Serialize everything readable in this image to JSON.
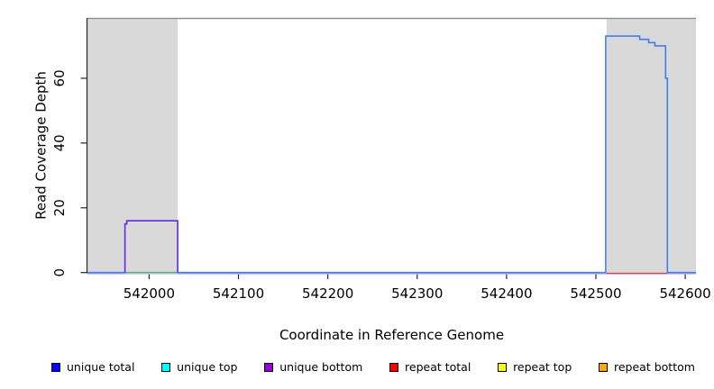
{
  "chart_data": {
    "type": "line",
    "title": "",
    "xlabel": "Coordinate in Reference Genome",
    "ylabel": "Read Coverage Depth",
    "xlim": [
      541931,
      542612
    ],
    "ylim": [
      0,
      78.6
    ],
    "xticks": [
      542000,
      542100,
      542200,
      542300,
      542400,
      542500,
      542600
    ],
    "yticks": [
      0,
      20,
      40,
      60
    ],
    "grid": "off",
    "background": "#ffffff",
    "axis_color": "#262626",
    "top_border_color": "#8f8f8f",
    "shaded_regions": [
      {
        "name": "repeat-region-left",
        "x0": 541931,
        "x1": 542032,
        "color": "#d9d9d9"
      },
      {
        "name": "repeat-region-right",
        "x0": 542512,
        "x1": 542612,
        "color": "#d9d9d9"
      }
    ],
    "series": [
      {
        "name": "zero-baseline-lavender",
        "color": "#c9aaf9",
        "width": 1.2,
        "dy": 1.4,
        "points": [
          [
            541931,
            0
          ],
          [
            542612,
            0
          ]
        ]
      },
      {
        "name": "zero-baseline-pale-yellow",
        "color": "#f1eec6",
        "width": 1.2,
        "dy": 1.0,
        "points": [
          [
            541973,
            0
          ],
          [
            542032,
            0
          ]
        ]
      },
      {
        "name": "unique total",
        "color": "#3d7ef5",
        "width": 1.6,
        "dy": 0,
        "points": [
          [
            541931,
            0
          ],
          [
            542511,
            0
          ],
          [
            542511,
            73
          ],
          [
            542549,
            73
          ],
          [
            542549,
            72
          ],
          [
            542559,
            72
          ],
          [
            542559,
            71
          ],
          [
            542566,
            71
          ],
          [
            542566,
            70
          ],
          [
            542578,
            70
          ],
          [
            542578,
            60
          ],
          [
            542580,
            60
          ],
          [
            542580,
            0
          ],
          [
            542612,
            0
          ]
        ]
      },
      {
        "name": "zero-baseline-green",
        "color": "#5cb96a",
        "width": 1.2,
        "dy": 0,
        "points": [
          [
            541973,
            0
          ],
          [
            542032,
            0
          ]
        ]
      },
      {
        "name": "repeat total",
        "color": "#e93b4c",
        "width": 1.2,
        "dy": 0.8,
        "points": [
          [
            542512,
            0
          ],
          [
            542580,
            0
          ]
        ]
      },
      {
        "name": "unique bottom",
        "color": "#5b2ee1",
        "width": 1.6,
        "dy": 0,
        "points": [
          [
            541973,
            0
          ],
          [
            541973,
            15
          ],
          [
            541975,
            15
          ],
          [
            541975,
            16
          ],
          [
            542032,
            16
          ],
          [
            542032,
            0
          ]
        ]
      }
    ],
    "legend": {
      "position": "bottom",
      "items": [
        {
          "label": "unique total",
          "color": "#0000ff"
        },
        {
          "label": "unique top",
          "color": "#00ffff"
        },
        {
          "label": "unique bottom",
          "color": "#9400d3"
        },
        {
          "label": "repeat total",
          "color": "#ff0000"
        },
        {
          "label": "repeat top",
          "color": "#ffff00"
        },
        {
          "label": "repeat bottom",
          "color": "#ffa500"
        }
      ]
    }
  }
}
